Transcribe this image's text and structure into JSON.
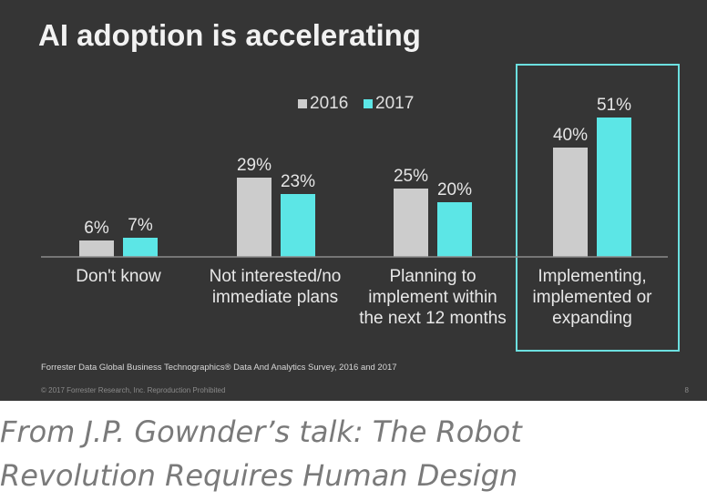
{
  "slide": {
    "title": "AI adoption is accelerating",
    "footnote": "Forrester Data Global Business Technographics® Data And Analytics Survey, 2016 and 2017",
    "copyright": "© 2017 Forrester Research, Inc. Reproduction Prohibited",
    "page_number": "8"
  },
  "caption": {
    "lines": [
      "From J.P. Gownder’s talk: The Robot",
      "Revolution Requires Human Design"
    ]
  },
  "colors": {
    "background": "#353535",
    "series_2016": "#cccccc",
    "series_2017": "#5ce6e6",
    "highlight_box": "#6ce0e0",
    "axis": "#8c8c8c"
  },
  "chart_data": {
    "type": "bar",
    "title": "AI adoption is accelerating",
    "categories": [
      [
        "Don't know"
      ],
      [
        "Not interested/no",
        "immediate plans"
      ],
      [
        "Planning to",
        "implement within",
        "the next 12 months"
      ],
      [
        "Implementing,",
        "implemented or",
        "expanding"
      ]
    ],
    "series": [
      {
        "name": "2016",
        "values": [
          6,
          29,
          25,
          40
        ],
        "labels": [
          "6%",
          "29%",
          "25%",
          "40%"
        ]
      },
      {
        "name": "2017",
        "values": [
          7,
          23,
          20,
          51
        ],
        "labels": [
          "7%",
          "23%",
          "20%",
          "51%"
        ]
      }
    ],
    "unit": "%",
    "ylim": [
      0,
      51
    ],
    "grid": false,
    "legend_position": "top-center",
    "highlighted_category_index": 3
  }
}
